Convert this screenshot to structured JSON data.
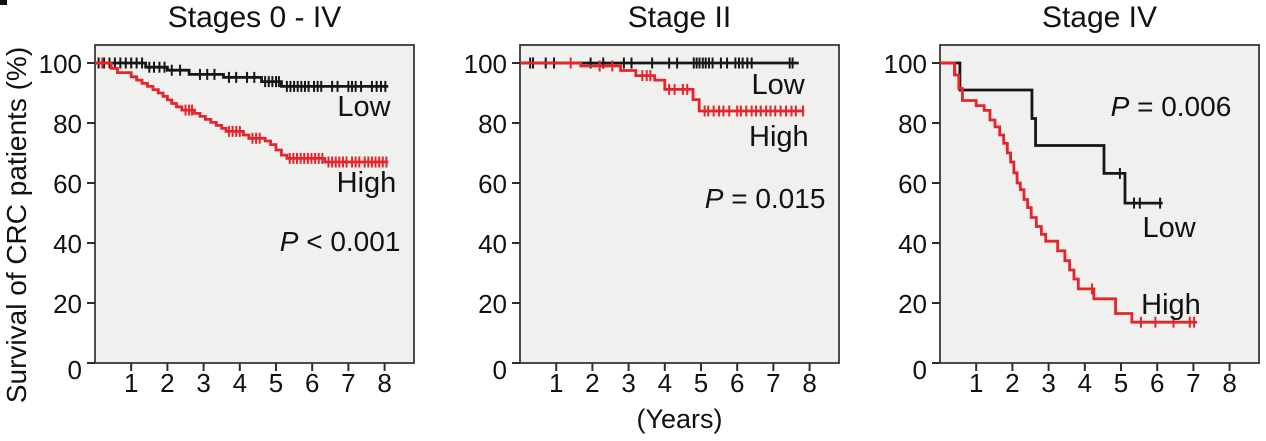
{
  "figure": {
    "ylabel": "Survival of CRC patients (%)",
    "xlabel": "(Years)",
    "colors": {
      "low": "#161616",
      "high": "#e8242b",
      "panel_bg": "#f0f0ee",
      "axis": "#2d2d2d",
      "text": "#111111"
    }
  },
  "chart_data": [
    {
      "type": "line",
      "subtype": "kaplan-meier-step",
      "title": "Stages 0 - IV",
      "p_label": "P < 0.001",
      "p_pos": [
        6.77,
        40.7
      ],
      "xlabel": "",
      "ylabel": "",
      "x_ticks": [
        1,
        2,
        3,
        4,
        5,
        6,
        7,
        8
      ],
      "y_ticks": [
        0,
        20,
        40,
        60,
        80,
        100
      ],
      "xlim": [
        0,
        8.81
      ],
      "ylim": [
        0,
        106
      ],
      "series": [
        {
          "name": "Low",
          "role": "low",
          "end": 8.1,
          "label_pos": [
            7.43,
            85.7
          ],
          "steps": [
            [
              0,
              100
            ],
            [
              1.4,
              98.6
            ],
            [
              2.0,
              97.6
            ],
            [
              2.6,
              96.2
            ],
            [
              3.55,
              95.2
            ],
            [
              4.6,
              93.8
            ],
            [
              5.15,
              92.2
            ]
          ],
          "censors": [
            [
              0.1,
              100
            ],
            [
              0.25,
              100
            ],
            [
              0.4,
              100
            ],
            [
              0.55,
              100
            ],
            [
              0.7,
              100
            ],
            [
              0.85,
              100
            ],
            [
              1.0,
              100
            ],
            [
              1.15,
              100
            ],
            [
              1.3,
              100
            ],
            [
              1.5,
              98.6
            ],
            [
              1.63,
              98.6
            ],
            [
              1.78,
              98.6
            ],
            [
              1.92,
              98.6
            ],
            [
              2.12,
              97.6
            ],
            [
              2.35,
              97.6
            ],
            [
              2.9,
              96.2
            ],
            [
              3.1,
              96.2
            ],
            [
              3.3,
              96.2
            ],
            [
              3.7,
              95.2
            ],
            [
              3.9,
              95.2
            ],
            [
              4.2,
              95.2
            ],
            [
              4.4,
              95.2
            ],
            [
              4.7,
              93.8
            ],
            [
              4.8,
              93.8
            ],
            [
              4.9,
              93.8
            ],
            [
              5.0,
              93.8
            ],
            [
              5.08,
              93.8
            ],
            [
              5.3,
              92.2
            ],
            [
              5.4,
              92.2
            ],
            [
              5.5,
              92.2
            ],
            [
              5.6,
              92.2
            ],
            [
              5.7,
              92.2
            ],
            [
              5.8,
              92.2
            ],
            [
              5.9,
              92.2
            ],
            [
              6.05,
              92.2
            ],
            [
              6.15,
              92.2
            ],
            [
              6.25,
              92.2
            ],
            [
              6.55,
              92.2
            ],
            [
              6.7,
              92.2
            ],
            [
              7.0,
              92.2
            ],
            [
              7.1,
              92.2
            ],
            [
              7.2,
              92.2
            ],
            [
              7.35,
              92.2
            ],
            [
              7.65,
              92.2
            ],
            [
              7.78,
              92.2
            ],
            [
              7.9,
              92.2
            ],
            [
              8.02,
              92.2
            ]
          ]
        },
        {
          "name": "High",
          "role": "high",
          "end": 8.1,
          "label_pos": [
            7.5,
            60.3
          ],
          "steps": [
            [
              0,
              100
            ],
            [
              0.45,
              98.2
            ],
            [
              0.62,
              96.8
            ],
            [
              1.0,
              95.4
            ],
            [
              1.15,
              94.3
            ],
            [
              1.3,
              93.2
            ],
            [
              1.45,
              92.2
            ],
            [
              1.6,
              91.1
            ],
            [
              1.75,
              90.0
            ],
            [
              1.88,
              88.9
            ],
            [
              2.0,
              87.7
            ],
            [
              2.12,
              86.5
            ],
            [
              2.25,
              85.4
            ],
            [
              2.4,
              84.3
            ],
            [
              2.75,
              83.2
            ],
            [
              2.9,
              82.2
            ],
            [
              3.05,
              81.2
            ],
            [
              3.2,
              80.2
            ],
            [
              3.35,
              79.2
            ],
            [
              3.5,
              78.2
            ],
            [
              3.62,
              77.2
            ],
            [
              4.1,
              76.0
            ],
            [
              4.25,
              74.9
            ],
            [
              4.7,
              74.0
            ],
            [
              4.85,
              72.8
            ],
            [
              5.0,
              71.0
            ],
            [
              5.15,
              69.3
            ],
            [
              5.3,
              68.2
            ],
            [
              6.35,
              67.0
            ]
          ],
          "censors": [
            [
              0.2,
              100
            ],
            [
              2.5,
              84.3
            ],
            [
              2.6,
              84.3
            ],
            [
              2.68,
              84.3
            ],
            [
              3.7,
              77.2
            ],
            [
              3.8,
              77.2
            ],
            [
              3.9,
              77.2
            ],
            [
              4.0,
              77.2
            ],
            [
              4.35,
              74.9
            ],
            [
              4.45,
              74.9
            ],
            [
              4.55,
              74.9
            ],
            [
              5.38,
              68.2
            ],
            [
              5.48,
              68.2
            ],
            [
              5.58,
              68.2
            ],
            [
              5.68,
              68.2
            ],
            [
              5.78,
              68.2
            ],
            [
              5.88,
              68.2
            ],
            [
              5.98,
              68.2
            ],
            [
              6.08,
              68.2
            ],
            [
              6.18,
              68.2
            ],
            [
              6.28,
              68.2
            ],
            [
              6.45,
              67.0
            ],
            [
              6.55,
              67.0
            ],
            [
              6.65,
              67.0
            ],
            [
              6.75,
              67.0
            ],
            [
              6.85,
              67.0
            ],
            [
              6.95,
              67.0
            ],
            [
              7.1,
              67.0
            ],
            [
              7.2,
              67.0
            ],
            [
              7.3,
              67.0
            ],
            [
              7.45,
              67.0
            ],
            [
              7.55,
              67.0
            ],
            [
              7.65,
              67.0
            ],
            [
              7.75,
              67.0
            ],
            [
              7.85,
              67.0
            ],
            [
              7.95,
              67.0
            ],
            [
              8.05,
              67.0
            ]
          ]
        }
      ]
    },
    {
      "type": "line",
      "subtype": "kaplan-meier-step",
      "title": "Stage II",
      "p_label": "P = 0.015",
      "p_pos": [
        6.77,
        55.0
      ],
      "xlabel": "",
      "ylabel": "",
      "x_ticks": [
        1,
        2,
        3,
        4,
        5,
        6,
        7,
        8
      ],
      "y_ticks": [
        0,
        20,
        40,
        60,
        80,
        100
      ],
      "xlim": [
        0,
        8.81
      ],
      "ylim": [
        0,
        106
      ],
      "series": [
        {
          "name": "Low",
          "role": "low",
          "end": 7.7,
          "label_pos": [
            7.13,
            93.0
          ],
          "steps": [
            [
              0,
              100
            ]
          ],
          "censors": [
            [
              0.28,
              100
            ],
            [
              0.36,
              100
            ],
            [
              0.71,
              100
            ],
            [
              0.94,
              100
            ],
            [
              1.95,
              100
            ],
            [
              2.3,
              100
            ],
            [
              2.87,
              100
            ],
            [
              3.08,
              100
            ],
            [
              3.65,
              100
            ],
            [
              4.12,
              100
            ],
            [
              4.34,
              100
            ],
            [
              4.8,
              100
            ],
            [
              4.88,
              100
            ],
            [
              4.96,
              100
            ],
            [
              5.05,
              100
            ],
            [
              5.13,
              100
            ],
            [
              5.22,
              100
            ],
            [
              5.32,
              100
            ],
            [
              5.55,
              100
            ],
            [
              5.72,
              100
            ],
            [
              5.95,
              100
            ],
            [
              6.05,
              100
            ],
            [
              6.15,
              100
            ],
            [
              6.28,
              100
            ],
            [
              6.4,
              100
            ],
            [
              7.45,
              100
            ],
            [
              7.53,
              100
            ]
          ]
        },
        {
          "name": "High",
          "role": "high",
          "end": 7.85,
          "label_pos": [
            7.15,
            75.7
          ],
          "steps": [
            [
              0,
              100
            ],
            [
              1.68,
              99.0
            ],
            [
              2.78,
              97.5
            ],
            [
              3.2,
              95.8
            ],
            [
              3.72,
              94.3
            ],
            [
              4.0,
              91.2
            ],
            [
              4.78,
              87.8
            ],
            [
              4.95,
              84.0
            ]
          ],
          "censors": [
            [
              1.4,
              100
            ],
            [
              2.2,
              99.0
            ],
            [
              2.55,
              99.0
            ],
            [
              3.38,
              95.8
            ],
            [
              3.5,
              95.8
            ],
            [
              3.6,
              95.8
            ],
            [
              4.12,
              91.2
            ],
            [
              4.27,
              91.2
            ],
            [
              4.5,
              91.2
            ],
            [
              4.62,
              91.2
            ],
            [
              5.1,
              84
            ],
            [
              5.2,
              84
            ],
            [
              5.35,
              84
            ],
            [
              5.5,
              84
            ],
            [
              5.62,
              84
            ],
            [
              5.78,
              84
            ],
            [
              6.0,
              84
            ],
            [
              6.1,
              84
            ],
            [
              6.25,
              84
            ],
            [
              6.4,
              84
            ],
            [
              6.52,
              84
            ],
            [
              6.65,
              84
            ],
            [
              6.8,
              84
            ],
            [
              6.92,
              84
            ],
            [
              7.05,
              84
            ],
            [
              7.2,
              84
            ],
            [
              7.35,
              84
            ],
            [
              7.5,
              84
            ],
            [
              7.62,
              84
            ],
            [
              7.82,
              84
            ]
          ]
        }
      ]
    },
    {
      "type": "line",
      "subtype": "kaplan-meier-step",
      "title": "Stage IV",
      "p_label": "P = 0.006",
      "p_pos": [
        6.38,
        85.7
      ],
      "xlabel": "",
      "ylabel": "",
      "x_ticks": [
        1,
        2,
        3,
        4,
        5,
        6,
        7,
        8
      ],
      "y_ticks": [
        0,
        20,
        40,
        60,
        80,
        100
      ],
      "xlim": [
        0,
        8.81
      ],
      "ylim": [
        0,
        106
      ],
      "series": [
        {
          "name": "Low",
          "role": "low",
          "end": 6.15,
          "label_pos": [
            6.33,
            45.3
          ],
          "steps": [
            [
              0,
              100
            ],
            [
              0.55,
              91.0
            ],
            [
              2.54,
              81.5
            ],
            [
              2.64,
              72.5
            ],
            [
              4.53,
              63.2
            ],
            [
              5.11,
              53.3
            ]
          ],
          "censors": [
            [
              4.97,
              63.2
            ],
            [
              5.36,
              53.3
            ],
            [
              5.52,
              53.3
            ],
            [
              6.08,
              53.3
            ]
          ]
        },
        {
          "name": "High",
          "role": "high",
          "end": 7.1,
          "label_pos": [
            6.38,
            19.7
          ],
          "steps": [
            [
              0,
              100
            ],
            [
              0.4,
              96.0
            ],
            [
              0.52,
              91.5
            ],
            [
              0.62,
              87.5
            ],
            [
              1.0,
              85.8
            ],
            [
              1.22,
              84.2
            ],
            [
              1.38,
              81.0
            ],
            [
              1.52,
              78.7
            ],
            [
              1.65,
              76.0
            ],
            [
              1.76,
              73.2
            ],
            [
              1.86,
              70.0
            ],
            [
              1.95,
              67.0
            ],
            [
              2.04,
              63.4
            ],
            [
              2.13,
              60.0
            ],
            [
              2.22,
              57.8
            ],
            [
              2.32,
              54.5
            ],
            [
              2.42,
              51.8
            ],
            [
              2.52,
              48.5
            ],
            [
              2.66,
              45.5
            ],
            [
              2.8,
              42.9
            ],
            [
              2.92,
              40.6
            ],
            [
              3.25,
              37.4
            ],
            [
              3.45,
              34.1
            ],
            [
              3.58,
              31.0
            ],
            [
              3.7,
              28.0
            ],
            [
              3.82,
              24.7
            ],
            [
              4.25,
              21.4
            ],
            [
              4.85,
              16.5
            ],
            [
              5.3,
              13.6
            ]
          ],
          "censors": [
            [
              0.42,
              97.5
            ],
            [
              4.2,
              24.7
            ],
            [
              5.55,
              13.6
            ],
            [
              5.95,
              13.6
            ],
            [
              6.45,
              13.6
            ],
            [
              6.9,
              13.6
            ],
            [
              7.02,
              13.6
            ]
          ]
        }
      ]
    }
  ]
}
